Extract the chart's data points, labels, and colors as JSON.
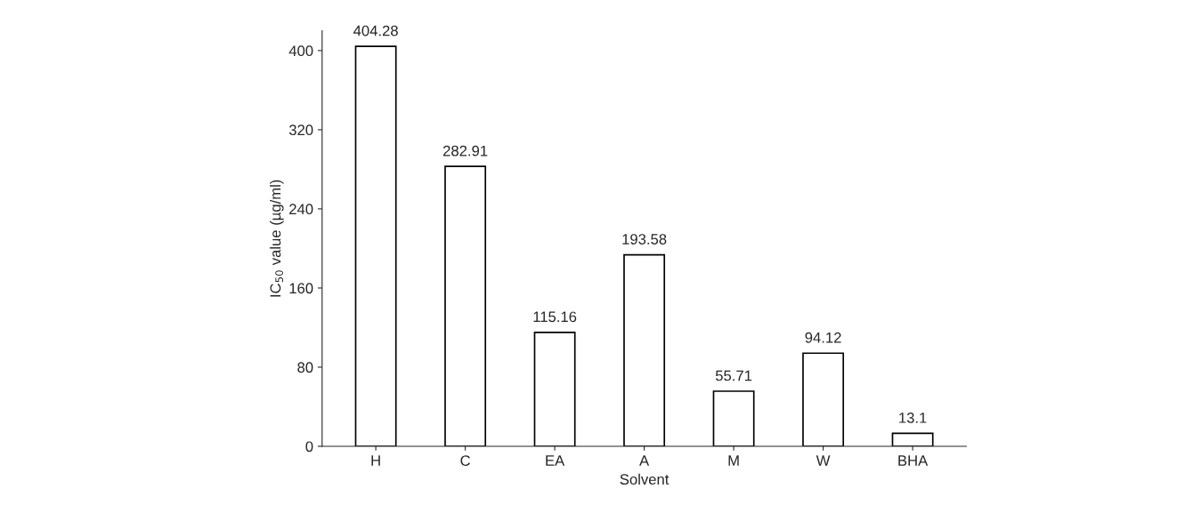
{
  "chart_data": {
    "type": "bar",
    "xlabel": "Solvent",
    "ylabel": "IC$_{50}$ value (µg/ml)",
    "categories": [
      "H",
      "C",
      "EA",
      "A",
      "M",
      "W",
      "BHA"
    ],
    "values": [
      404.28,
      282.91,
      115.16,
      193.58,
      55.71,
      94.12,
      13.1
    ],
    "color": "#ffffff",
    "ylim": [
      0,
      420
    ],
    "yticks": [
      0,
      80,
      160,
      240,
      320,
      400
    ],
    "data_labels": true,
    "grid": false,
    "legend": false
  }
}
